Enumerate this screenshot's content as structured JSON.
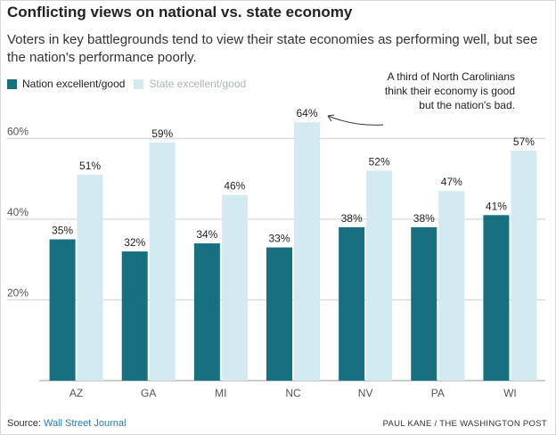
{
  "title": "Conflicting views on national vs. state economy",
  "subtitle": "Voters in key battlegrounds tend to view their state economies as performing well, but see the nation's performance poorly.",
  "legend": {
    "nation_label": "Nation excellent/good",
    "state_label": "State excellent/good"
  },
  "annotation": {
    "lines": [
      "A third of North Carolinians",
      "think their economy is good",
      "but the nation's bad."
    ]
  },
  "source": {
    "prefix": "Source: ",
    "name": "Wall Street Journal"
  },
  "credit": "PAUL KANE / THE WASHINGTON POST",
  "colors": {
    "nation": "#17707f",
    "state": "#d2eaf0",
    "grid": "#cfcfcf",
    "axis_text": "#555555"
  },
  "chart_data": {
    "type": "bar",
    "title": "Conflicting views on national vs. state economy",
    "categories": [
      "AZ",
      "GA",
      "MI",
      "NC",
      "NV",
      "PA",
      "WI"
    ],
    "series": [
      {
        "name": "Nation excellent/good",
        "values": [
          35,
          32,
          34,
          33,
          38,
          38,
          41
        ]
      },
      {
        "name": "State excellent/good",
        "values": [
          51,
          59,
          46,
          64,
          52,
          47,
          57
        ]
      }
    ],
    "value_suffix": "%",
    "ylim": [
      0,
      70
    ],
    "yticks": [
      20,
      40,
      60
    ],
    "ytick_labels": [
      "20%",
      "40%",
      "60%"
    ],
    "grid": true,
    "legend_position": "top-left"
  }
}
